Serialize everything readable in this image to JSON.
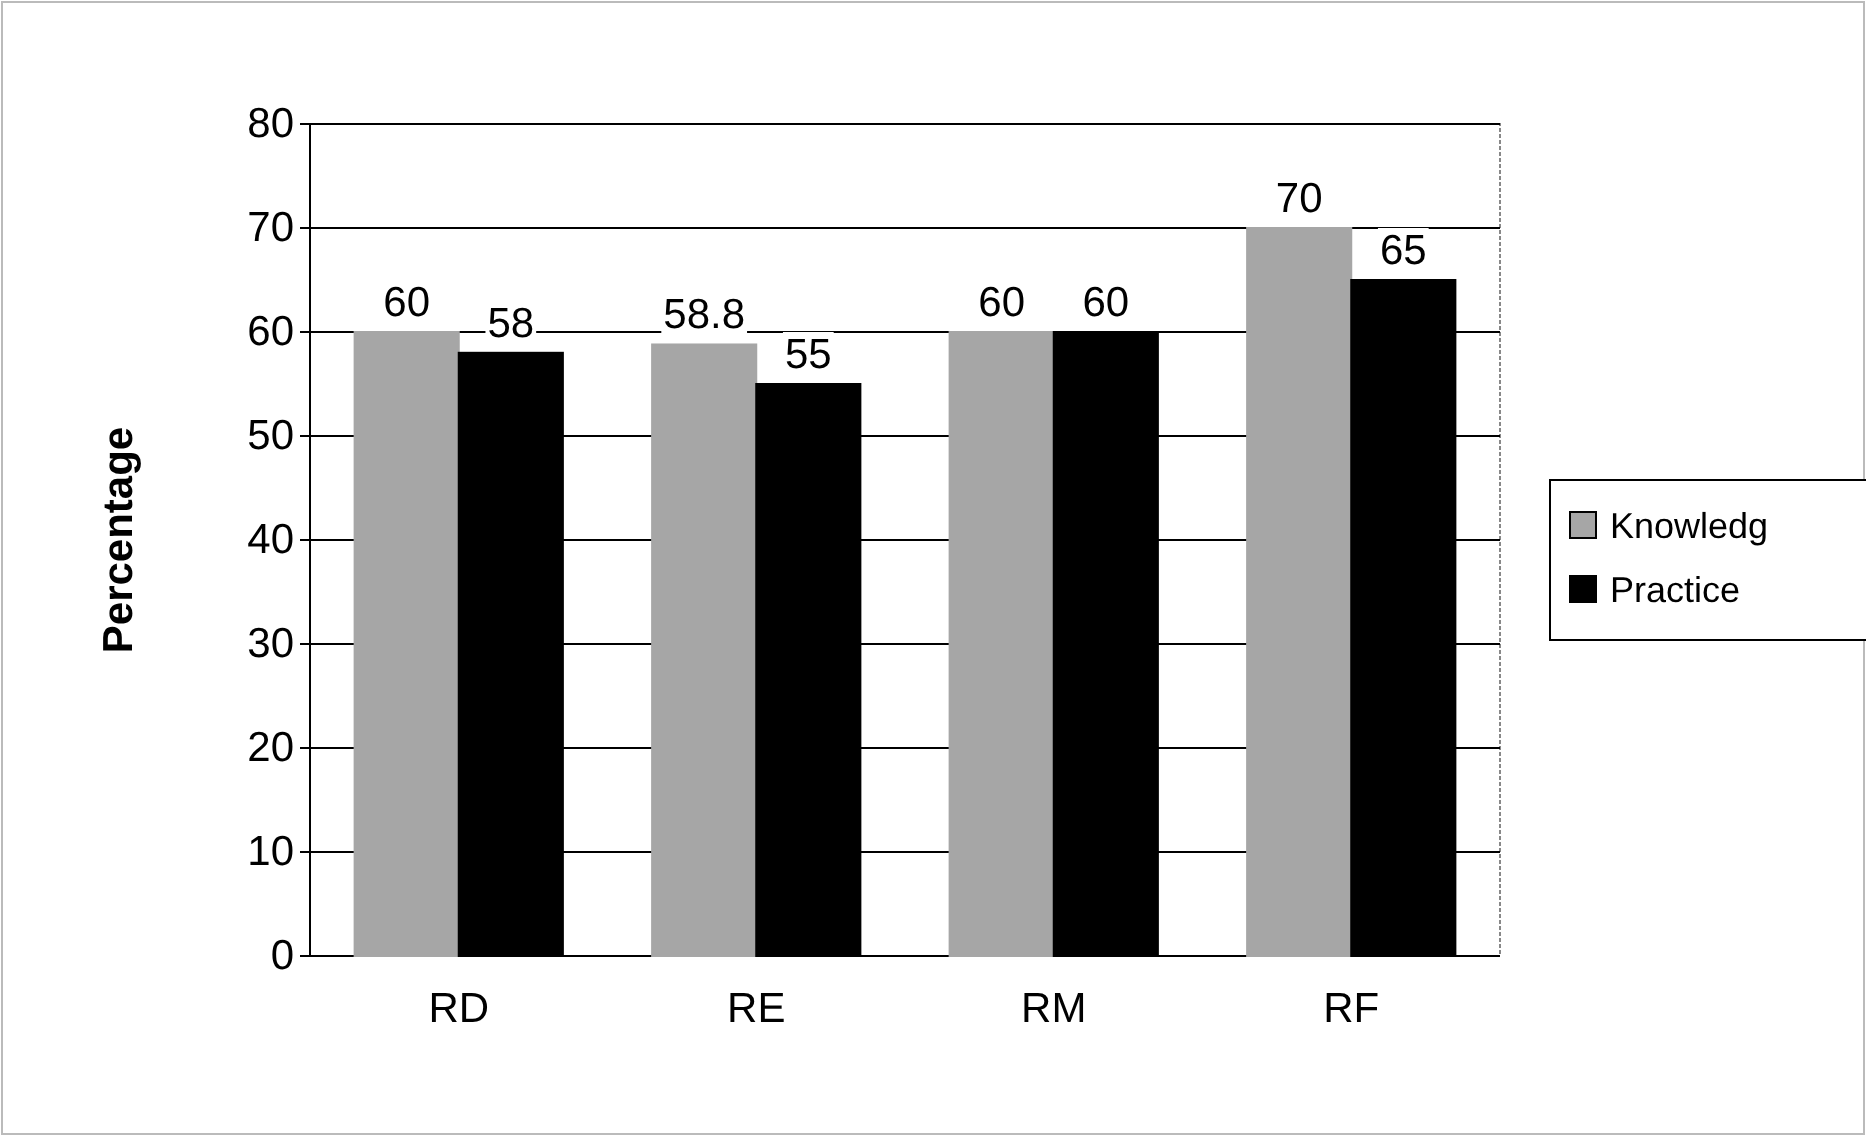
{
  "chart_data": {
    "type": "bar",
    "ylabel": "Percentage",
    "categories": [
      "RD",
      "RE",
      "RM",
      "RF"
    ],
    "series": [
      {
        "name": "Knowledg",
        "color": "#a6a6a6",
        "values": [
          60,
          58.8,
          60,
          70
        ]
      },
      {
        "name": "Practice",
        "color": "#000000",
        "values": [
          58,
          55,
          60,
          65
        ]
      }
    ],
    "ylim": [
      0,
      80
    ],
    "yticks": [
      0,
      10,
      20,
      30,
      40,
      50,
      60,
      70,
      80
    ],
    "grid": "y",
    "legend": "right",
    "data_labels": true
  }
}
